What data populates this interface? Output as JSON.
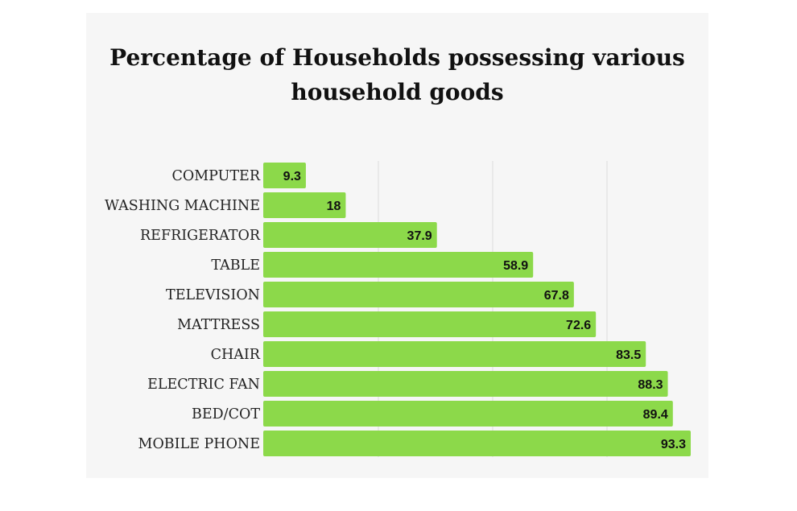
{
  "chart_data": {
    "type": "bar",
    "orientation": "horizontal",
    "title_lines": [
      "Percentage of Households possessing various",
      "household goods"
    ],
    "categories": [
      "COMPUTER",
      "WASHING MACHINE",
      "REFRIGERATOR",
      "TABLE",
      "TELEVISION",
      "MATTRESS",
      "CHAIR",
      "ELECTRIC FAN",
      "BED/COT",
      "MOBILE PHONE"
    ],
    "values": [
      9.3,
      18,
      37.9,
      58.9,
      67.8,
      72.6,
      83.5,
      88.3,
      89.4,
      93.3
    ],
    "xlim": [
      0,
      93.3
    ],
    "grid": true,
    "bar_color": "#8cd94a",
    "grid_color": "#dcdcdc"
  }
}
